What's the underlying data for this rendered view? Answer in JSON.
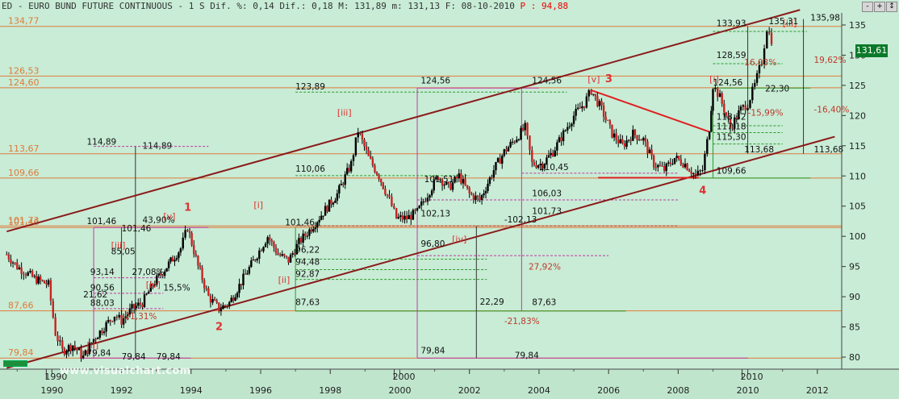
{
  "header": {
    "symbol": "ED - EURO BUND FUTURE CONTINUOUS - ",
    "interval": " 1 S",
    "dif_label": " Dif. %:",
    "dif_pct": " 0,14",
    "dif_label2": " Dif.:",
    "dif_val": " 0,18",
    "max": " M: 131,89",
    "min": " m: 131,13",
    "date": " F: 08-10-2010",
    "p_label": " P : ",
    "p_val": "94,88"
  },
  "scale_buttons": [
    "-",
    "+",
    "↕"
  ],
  "watermark": "www.visualchart.com",
  "last_price": "131,61",
  "colors": {
    "background": "#c8ecd6",
    "channel": "#8b1a1a",
    "horizontal": "#e07a3a",
    "candle_up": "#000000",
    "candle_down": "#cc2222",
    "fib_green": "#2a9a2a",
    "fib_magenta": "#c03aa0",
    "wave_label": "#e03030"
  },
  "chart_data": {
    "type": "candlestick",
    "title": "ED - EURO BUND FUTURE CONTINUOUS",
    "ylim": [
      78,
      137
    ],
    "y_ticks": [
      80,
      85,
      90,
      95,
      100,
      105,
      110,
      115,
      120,
      125,
      130,
      135
    ],
    "x_range_years": [
      1988.6,
      2012.7
    ],
    "x_ticks_bottom": [
      "1990",
      "1992",
      "1994",
      "1996",
      "1998",
      "2000",
      "2002",
      "2004",
      "2006",
      "2008",
      "2010",
      "2012"
    ],
    "x_ticks_upper": [
      "1990",
      "2000",
      "2010"
    ],
    "price_path": [
      [
        1988.7,
        97
      ],
      [
        1989.0,
        95
      ],
      [
        1989.5,
        93
      ],
      [
        1989.9,
        92
      ],
      [
        1990.1,
        84
      ],
      [
        1990.3,
        81
      ],
      [
        1990.6,
        82
      ],
      [
        1990.9,
        80
      ],
      [
        1991.2,
        83
      ],
      [
        1991.5,
        85
      ],
      [
        1991.8,
        87
      ],
      [
        1992.0,
        86
      ],
      [
        1992.3,
        88
      ],
      [
        1992.6,
        89
      ],
      [
        1992.9,
        92
      ],
      [
        1993.3,
        95
      ],
      [
        1993.7,
        98
      ],
      [
        1993.9,
        101.5
      ],
      [
        1994.2,
        95
      ],
      [
        1994.5,
        90
      ],
      [
        1994.8,
        88
      ],
      [
        1995.1,
        89
      ],
      [
        1995.5,
        93
      ],
      [
        1995.9,
        97
      ],
      [
        1996.2,
        100
      ],
      [
        1996.5,
        97
      ],
      [
        1996.8,
        96
      ],
      [
        1997.1,
        99
      ],
      [
        1997.4,
        101
      ],
      [
        1997.8,
        104
      ],
      [
        1998.2,
        107
      ],
      [
        1998.6,
        112
      ],
      [
        1998.8,
        117.5
      ],
      [
        1999.1,
        113
      ],
      [
        1999.4,
        110
      ],
      [
        1999.7,
        106
      ],
      [
        1999.9,
        103
      ],
      [
        2000.2,
        103
      ],
      [
        2000.5,
        104
      ],
      [
        2000.8,
        107
      ],
      [
        2001.1,
        110
      ],
      [
        2001.4,
        108
      ],
      [
        2001.7,
        110
      ],
      [
        2002.0,
        107
      ],
      [
        2002.3,
        106
      ],
      [
        2002.7,
        111
      ],
      [
        2003.0,
        114
      ],
      [
        2003.3,
        116
      ],
      [
        2003.6,
        118
      ],
      [
        2003.8,
        112
      ],
      [
        2004.1,
        112
      ],
      [
        2004.4,
        114
      ],
      [
        2004.7,
        117
      ],
      [
        2005.0,
        120
      ],
      [
        2005.3,
        122
      ],
      [
        2005.5,
        124.2
      ],
      [
        2005.8,
        121
      ],
      [
        2006.1,
        117
      ],
      [
        2006.4,
        115
      ],
      [
        2006.7,
        117
      ],
      [
        2007.0,
        116
      ],
      [
        2007.3,
        112
      ],
      [
        2007.6,
        111
      ],
      [
        2007.9,
        113
      ],
      [
        2008.2,
        112
      ],
      [
        2008.5,
        110
      ],
      [
        2008.7,
        111
      ],
      [
        2008.9,
        118
      ],
      [
        2009.0,
        125
      ],
      [
        2009.2,
        123
      ],
      [
        2009.5,
        118
      ],
      [
        2009.8,
        121
      ],
      [
        2010.0,
        122
      ],
      [
        2010.2,
        125
      ],
      [
        2010.4,
        129
      ],
      [
        2010.55,
        134.5
      ],
      [
        2010.75,
        131.6
      ]
    ],
    "channel_lines": [
      {
        "from": [
          1988.7,
          100.8
        ],
        "to": [
          2011.5,
          137.5
        ]
      },
      {
        "from": [
          1988.7,
          78.2
        ],
        "to": [
          2012.5,
          116.5
        ]
      }
    ],
    "horizontal_levels": [
      {
        "value": 134.77,
        "label": "134,77"
      },
      {
        "value": 126.53,
        "label": "126,53"
      },
      {
        "value": 124.6,
        "label": "124,60"
      },
      {
        "value": 113.67,
        "label": "113,67"
      },
      {
        "value": 109.66,
        "label": "109,66"
      },
      {
        "value": 101.73,
        "label": "101,73"
      },
      {
        "value": 101.46,
        "label": "101,46"
      },
      {
        "value": 87.66,
        "label": "87,66"
      },
      {
        "value": 79.84,
        "label": "79,84"
      }
    ],
    "wave_labels": [
      {
        "t": "1",
        "x": 1993.8,
        "y": 104.2,
        "big": true
      },
      {
        "t": "2",
        "x": 1994.7,
        "y": 84.5,
        "big": true
      },
      {
        "t": "3",
        "x": 2005.9,
        "y": 125.5,
        "big": true
      },
      {
        "t": "4",
        "x": 2008.6,
        "y": 107,
        "big": true
      },
      {
        "t": "[v]",
        "x": 1993.2,
        "y": 102.8
      },
      {
        "t": "[iii]",
        "x": 1991.7,
        "y": 98
      },
      {
        "t": "[iv]",
        "x": 1992.7,
        "y": 91.5
      },
      {
        "t": "[ii]",
        "x": 1991.0,
        "y": 81.5
      },
      {
        "t": "[i]",
        "x": 1995.8,
        "y": 104.7
      },
      {
        "t": "[ii]",
        "x": 1996.5,
        "y": 92.3
      },
      {
        "t": "[iii]",
        "x": 1998.2,
        "y": 120
      },
      {
        "t": "[iv]",
        "x": 2001.5,
        "y": 99
      },
      {
        "t": "[v]",
        "x": 2005.4,
        "y": 125.5
      },
      {
        "t": "[i]",
        "x": 2008.9,
        "y": 125.5
      },
      {
        "t": "[iii]",
        "x": 2011.0,
        "y": 134.8
      }
    ],
    "annotations": [
      {
        "t": "114,89",
        "x": 1991.0,
        "y": 115.2
      },
      {
        "t": "114,89",
        "x": 1992.6,
        "y": 114.5
      },
      {
        "t": "101,46",
        "x": 1991.0,
        "y": 102
      },
      {
        "t": "101,46",
        "x": 1992.0,
        "y": 100.8
      },
      {
        "t": "43,90%",
        "x": 1992.6,
        "y": 102.2
      },
      {
        "t": "85,05",
        "x": 1991.7,
        "y": 97
      },
      {
        "t": "93,14",
        "x": 1991.1,
        "y": 93.6
      },
      {
        "t": "27,08%",
        "x": 1992.3,
        "y": 93.6
      },
      {
        "t": "90,56",
        "x": 1991.1,
        "y": 91
      },
      {
        "t": "21,62",
        "x": 1990.9,
        "y": 89.9
      },
      {
        "t": "88,03",
        "x": 1991.1,
        "y": 88.5
      },
      {
        "t": "15,5%",
        "x": 1993.2,
        "y": 91
      },
      {
        "t": "-21,31%",
        "x": 1992.0,
        "y": 86.3
      },
      {
        "t": "79,84",
        "x": 1991.0,
        "y": 80.2
      },
      {
        "t": "79,84",
        "x": 1992.0,
        "y": 79.6
      },
      {
        "t": "79,84",
        "x": 1993.0,
        "y": 79.6
      },
      {
        "t": "101,46",
        "x": 1996.7,
        "y": 101.8
      },
      {
        "t": "96,22",
        "x": 1997.0,
        "y": 97.3
      },
      {
        "t": "94,48",
        "x": 1997.0,
        "y": 95.3
      },
      {
        "t": "92,87",
        "x": 1997.0,
        "y": 93.3
      },
      {
        "t": "87,63",
        "x": 1997.0,
        "y": 88.6
      },
      {
        "t": "123,89",
        "x": 1997.0,
        "y": 124.3
      },
      {
        "t": "110,06",
        "x": 1997.0,
        "y": 110.7
      },
      {
        "t": "124,56",
        "x": 2000.6,
        "y": 125.3
      },
      {
        "t": "124,56",
        "x": 2003.8,
        "y": 125.3
      },
      {
        "t": "102,13",
        "x": 2000.6,
        "y": 103.3
      },
      {
        "t": "101,73",
        "x": 2003.8,
        "y": 103.7
      },
      {
        "t": "-102,13",
        "x": 2003.0,
        "y": 102.3
      },
      {
        "t": "96,80",
        "x": 2000.6,
        "y": 98.3
      },
      {
        "t": "27,92%",
        "x": 2003.7,
        "y": 94.5
      },
      {
        "t": "22,29",
        "x": 2002.3,
        "y": 88.7
      },
      {
        "t": "87,63",
        "x": 2003.8,
        "y": 88.6
      },
      {
        "t": "-21,83%",
        "x": 2003.0,
        "y": 85.5
      },
      {
        "t": "79,84",
        "x": 2000.6,
        "y": 80.6
      },
      {
        "t": "79,84",
        "x": 2003.3,
        "y": 79.8
      },
      {
        "t": "106,03",
        "x": 2003.8,
        "y": 106.6
      },
      {
        "t": "110,45",
        "x": 2004.0,
        "y": 111
      },
      {
        "t": "101,51",
        "x": 2000.7,
        "y": 109
      },
      {
        "t": "133,93",
        "x": 2009.1,
        "y": 134.8
      },
      {
        "t": "135,31",
        "x": 2010.6,
        "y": 135.1
      },
      {
        "t": "135,98",
        "x": 2011.8,
        "y": 135.7
      },
      {
        "t": "128,59",
        "x": 2009.1,
        "y": 129.5
      },
      {
        "t": "19,62%",
        "x": 2011.9,
        "y": 128.7
      },
      {
        "t": "16,03%",
        "x": 2009.9,
        "y": 128.3
      },
      {
        "t": "124,56",
        "x": 2009.0,
        "y": 125
      },
      {
        "t": "22,30",
        "x": 2010.5,
        "y": 124
      },
      {
        "t": "-16,40%",
        "x": 2011.9,
        "y": 120.5
      },
      {
        "t": "-15,99%",
        "x": 2010.0,
        "y": 120
      },
      {
        "t": "118,32",
        "x": 2009.1,
        "y": 119.3
      },
      {
        "t": "117,18",
        "x": 2009.1,
        "y": 117.7
      },
      {
        "t": "115,30",
        "x": 2009.1,
        "y": 116
      },
      {
        "t": "113,68",
        "x": 2009.9,
        "y": 113.9
      },
      {
        "t": "113,68",
        "x": 2011.9,
        "y": 113.9
      },
      {
        "t": "109,66",
        "x": 2009.1,
        "y": 110.4
      }
    ]
  }
}
